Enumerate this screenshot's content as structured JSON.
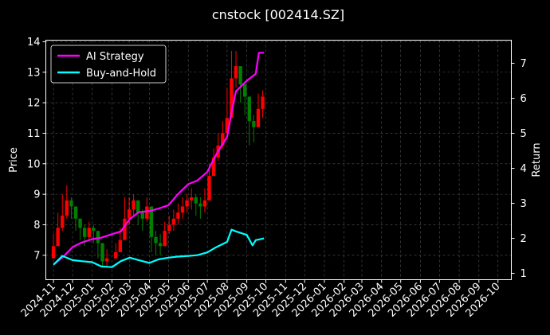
{
  "chart_data": {
    "type": "line",
    "title": "cnstock [002414.SZ]",
    "ylabel": "Price",
    "y2label": "Return",
    "ylim": [
      6.2,
      14.05
    ],
    "y2lim": [
      0.82,
      7.66
    ],
    "yticks": [
      7,
      8,
      9,
      10,
      11,
      12,
      13,
      14
    ],
    "y2ticks": [
      1,
      2,
      3,
      4,
      5,
      6,
      7
    ],
    "x_ticks": [
      "2024-11",
      "2024-12",
      "2025-01",
      "2025-02",
      "2025-03",
      "2025-04",
      "2025-05",
      "2025-06",
      "2025-07",
      "2025-08",
      "2025-09",
      "2025-10",
      "2025-11",
      "2025-12",
      "2026-01",
      "2026-02",
      "2026-03",
      "2026-04",
      "2026-05",
      "2026-06",
      "2026-07",
      "2026-08",
      "2026-09",
      "2026-10"
    ],
    "xlim": [
      "2024-10-20",
      "2026-10-22"
    ],
    "grid": true,
    "legend_position": "top-left",
    "price_series": {
      "type": "candlestick",
      "colors": {
        "up": "#ff0000",
        "down": "#008000"
      },
      "dates": [
        "2024-11-01",
        "2024-11-08",
        "2024-11-15",
        "2024-11-22",
        "2024-11-29",
        "2024-12-06",
        "2024-12-13",
        "2024-12-20",
        "2024-12-27",
        "2025-01-03",
        "2025-01-10",
        "2025-01-17",
        "2025-01-24",
        "2025-02-07",
        "2025-02-14",
        "2025-02-21",
        "2025-02-28",
        "2025-03-07",
        "2025-03-14",
        "2025-03-21",
        "2025-03-28",
        "2025-04-04",
        "2025-04-11",
        "2025-04-18",
        "2025-04-25",
        "2025-05-02",
        "2025-05-09",
        "2025-05-16",
        "2025-05-23",
        "2025-05-30",
        "2025-06-06",
        "2025-06-13",
        "2025-06-20",
        "2025-06-27",
        "2025-07-04",
        "2025-07-11",
        "2025-07-18",
        "2025-07-25",
        "2025-08-01",
        "2025-08-08",
        "2025-08-15",
        "2025-08-22",
        "2025-08-29",
        "2025-09-05",
        "2025-09-12",
        "2025-09-19",
        "2025-09-26"
      ],
      "close": [
        7.3,
        7.9,
        8.3,
        8.8,
        8.6,
        8.2,
        7.9,
        7.6,
        7.9,
        7.8,
        7.4,
        6.8,
        6.9,
        7.1,
        7.5,
        8.2,
        8.5,
        8.8,
        8.4,
        8.2,
        8.6,
        7.6,
        7.4,
        7.3,
        7.8,
        8.0,
        8.2,
        8.4,
        8.6,
        8.8,
        8.9,
        8.7,
        8.6,
        8.8,
        9.6,
        10.2,
        10.6,
        11.0,
        11.5,
        12.8,
        13.2,
        12.6,
        12.2,
        11.4,
        11.2,
        11.8,
        12.2
      ],
      "high": [
        7.7,
        8.4,
        9.0,
        9.3,
        8.9,
        8.5,
        8.2,
        8.0,
        8.1,
        8.0,
        7.7,
        7.2,
        7.2,
        7.4,
        7.9,
        8.9,
        8.9,
        9.0,
        8.8,
        8.5,
        8.9,
        8.0,
        7.8,
        7.7,
        8.1,
        8.3,
        8.5,
        8.7,
        8.9,
        9.0,
        9.2,
        9.0,
        8.9,
        9.2,
        10.0,
        10.5,
        11.0,
        11.4,
        12.5,
        13.7,
        13.7,
        13.0,
        12.7,
        12.0,
        11.6,
        12.3,
        12.4
      ],
      "low": [
        6.9,
        7.3,
        7.8,
        8.2,
        8.2,
        7.8,
        7.5,
        7.3,
        7.5,
        7.4,
        6.9,
        6.6,
        6.6,
        6.9,
        7.1,
        7.6,
        8.0,
        8.3,
        8.0,
        7.8,
        8.1,
        7.1,
        7.0,
        7.0,
        7.3,
        7.7,
        7.8,
        8.0,
        8.2,
        8.4,
        8.5,
        8.3,
        8.2,
        8.4,
        9.0,
        9.6,
        10.1,
        10.5,
        11.0,
        12.0,
        12.5,
        12.0,
        11.6,
        10.6,
        10.7,
        11.2,
        11.5
      ]
    },
    "series": [
      {
        "name": "AI Strategy",
        "color": "#ff00ff",
        "x": [
          "2024-11-01",
          "2024-11-15",
          "2024-12-01",
          "2024-12-15",
          "2025-01-01",
          "2025-01-15",
          "2025-02-01",
          "2025-02-15",
          "2025-03-01",
          "2025-03-15",
          "2025-04-01",
          "2025-04-15",
          "2025-05-01",
          "2025-05-15",
          "2025-06-01",
          "2025-06-15",
          "2025-07-01",
          "2025-07-15",
          "2025-08-01",
          "2025-08-08",
          "2025-08-15",
          "2025-09-01",
          "2025-09-15",
          "2025-09-20",
          "2025-09-28"
        ],
        "values": [
          1.25,
          1.45,
          1.75,
          1.88,
          1.98,
          2.02,
          2.12,
          2.2,
          2.55,
          2.75,
          2.78,
          2.85,
          2.95,
          3.25,
          3.55,
          3.65,
          3.9,
          4.4,
          4.9,
          5.6,
          6.2,
          6.5,
          6.7,
          7.3,
          7.3
        ]
      },
      {
        "name": "Buy-and-Hold",
        "color": "#00ffff",
        "x": [
          "2024-11-01",
          "2024-11-15",
          "2024-12-01",
          "2024-12-15",
          "2025-01-01",
          "2025-01-15",
          "2025-02-01",
          "2025-02-15",
          "2025-03-01",
          "2025-03-15",
          "2025-04-01",
          "2025-04-15",
          "2025-05-01",
          "2025-05-15",
          "2025-06-01",
          "2025-06-15",
          "2025-07-01",
          "2025-07-15",
          "2025-08-01",
          "2025-08-08",
          "2025-08-15",
          "2025-09-01",
          "2025-09-10",
          "2025-09-15",
          "2025-09-28"
        ],
        "values": [
          1.25,
          1.5,
          1.38,
          1.35,
          1.32,
          1.2,
          1.18,
          1.35,
          1.45,
          1.38,
          1.3,
          1.4,
          1.45,
          1.48,
          1.5,
          1.52,
          1.6,
          1.75,
          1.9,
          2.25,
          2.2,
          2.1,
          1.8,
          1.95,
          2.0
        ]
      }
    ]
  }
}
